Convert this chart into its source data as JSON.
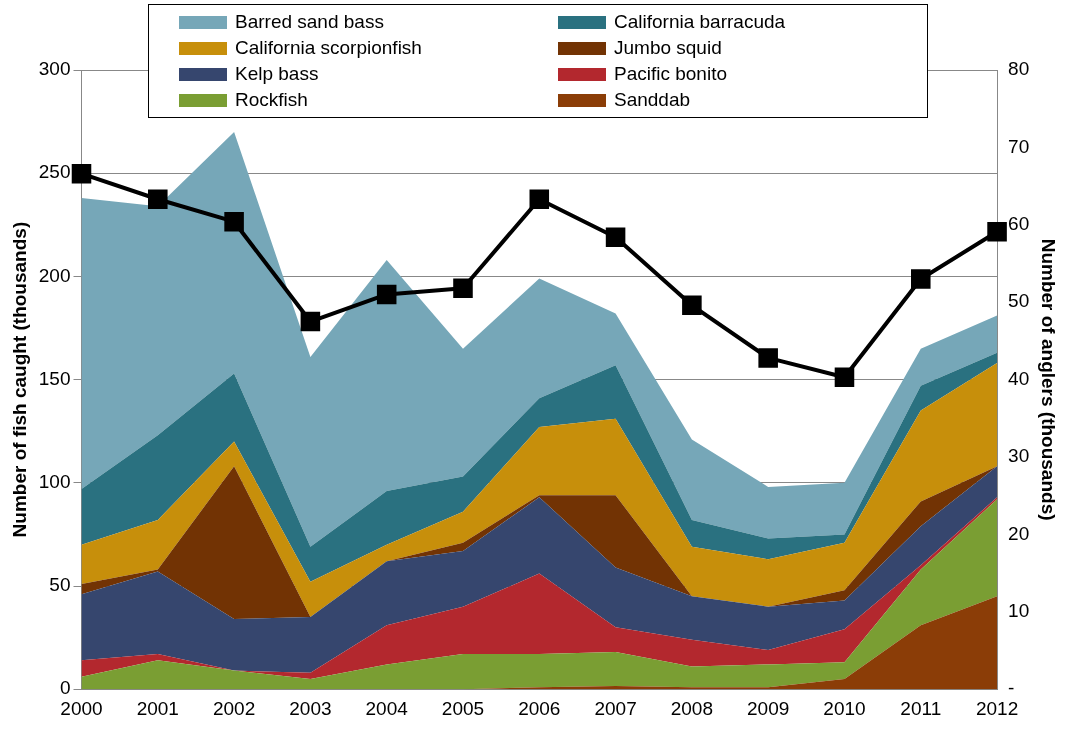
{
  "chart_data": {
    "type": "area",
    "stacked": true,
    "categories": [
      "2000",
      "2001",
      "2002",
      "2003",
      "2004",
      "2005",
      "2006",
      "2007",
      "2008",
      "2009",
      "2010",
      "2011",
      "2012"
    ],
    "ylabel": "Number of fish caught (thousands)",
    "y2label": "Number of anglers (thousands)",
    "ylim": [
      0,
      300
    ],
    "yticks": [
      0,
      50,
      100,
      150,
      200,
      250,
      300
    ],
    "y2lim": [
      0,
      80
    ],
    "y2ticks": [
      {
        "value": 0,
        "label": "-"
      },
      10,
      20,
      30,
      40,
      50,
      60,
      70,
      80
    ],
    "grid": "y",
    "legend": "top",
    "series": [
      {
        "name": "Sanddab",
        "color": "#8b3d07",
        "values": [
          0,
          0,
          0,
          0,
          0,
          0,
          1,
          1.5,
          1,
          1,
          5,
          31,
          45
        ]
      },
      {
        "name": "Rockfish",
        "color": "#7a9e33",
        "values": [
          6,
          14,
          9,
          5,
          12,
          17,
          16,
          16.5,
          10,
          11,
          8,
          27,
          47
        ]
      },
      {
        "name": "Pacific bonito",
        "color": "#b3282e",
        "values": [
          8,
          3,
          0,
          3,
          19,
          23,
          39,
          12,
          13,
          7,
          16,
          2,
          1
        ]
      },
      {
        "name": "Kelp bass",
        "color": "#36466e",
        "values": [
          32,
          40,
          25,
          27,
          31,
          27,
          37,
          29,
          21,
          21,
          14,
          19,
          15
        ]
      },
      {
        "name": "Jumbo squid",
        "color": "#723304",
        "values": [
          5,
          1,
          74,
          0,
          0,
          4,
          1,
          35,
          0,
          0,
          5,
          12,
          0
        ]
      },
      {
        "name": "California scorpionfish",
        "color": "#c78f0b",
        "values": [
          19,
          24,
          12,
          17,
          8,
          15,
          33,
          37,
          24,
          23,
          23,
          44,
          50
        ]
      },
      {
        "name": "California barracuda",
        "color": "#2a7180",
        "values": [
          27,
          41,
          33,
          17,
          26,
          17,
          14,
          26,
          13,
          10,
          4,
          12,
          5
        ]
      },
      {
        "name": "Barred sand bass",
        "color": "#76a7b8",
        "values": [
          141,
          111,
          117,
          92,
          112,
          62,
          58,
          25,
          39,
          25,
          25,
          18,
          18
        ]
      },
      {
        "type": "line",
        "axis": "y2",
        "color": "#000000",
        "marker": "square",
        "line_style": "solid",
        "values": [
          66.6,
          63.3,
          60.4,
          47.5,
          51.0,
          51.8,
          63.3,
          58.4,
          49.6,
          42.8,
          40.3,
          53.0,
          59.1
        ]
      }
    ]
  }
}
